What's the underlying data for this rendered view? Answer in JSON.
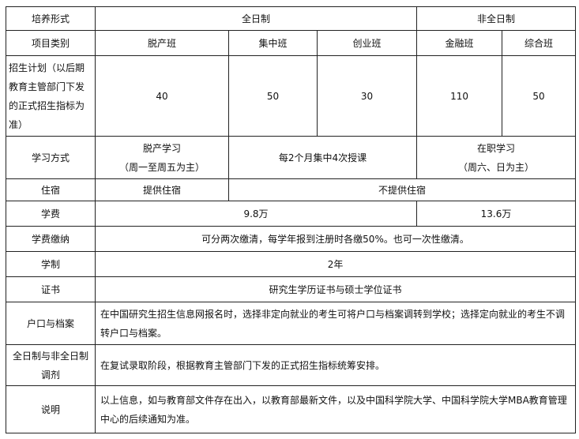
{
  "header": {
    "label": "培养形式",
    "full_time": "全日制",
    "part_time": "非全日制"
  },
  "category": {
    "label": "项目类别",
    "items": [
      "脱产班",
      "集中班",
      "创业班",
      "金融班",
      "综合班"
    ]
  },
  "enrollment": {
    "label": "招生计划（以后期教育主管部门下发的正式招生指标为准）",
    "values": [
      "40",
      "50",
      "30",
      "110",
      "50"
    ]
  },
  "study_mode": {
    "label": "学习方式",
    "full_off": "脱产学习",
    "full_off_note": "（周一至周五为主）",
    "concentrated": "每2个月集中4次授课",
    "part": "在职学习",
    "part_note": "（周六、日为主）"
  },
  "housing": {
    "label": "住宿",
    "provided": "提供住宿",
    "not_provided": "不提供住宿"
  },
  "tuition": {
    "label": "学费",
    "full": "9.8万",
    "part": "13.6万"
  },
  "payment": {
    "label": "学费缴纳",
    "value": "可分两次缴清，每学年报到注册时各缴50%。也可一次性缴清。"
  },
  "duration": {
    "label": "学制",
    "value": "2年"
  },
  "certificate": {
    "label": "证书",
    "value": "研究生学历证书与硕士学位证书"
  },
  "hukou": {
    "label": "户口与档案",
    "value": "在中国研究生招生信息网报名时，选择非定向就业的考生可将户口与档案调转到学校；选择定向就业的考生不调转户口与档案。"
  },
  "adjust": {
    "label": "全日制与非全日制调剂",
    "value": "在复试录取阶段，根据教育主管部门下发的正式招生指标统筹安排。"
  },
  "note": {
    "label": "说明",
    "value": "以上信息，如与教育部文件存在出入，以教育部最新文件，以及中国科学院大学、中国科学院大学MBA教育管理中心的后续通知为准。"
  }
}
